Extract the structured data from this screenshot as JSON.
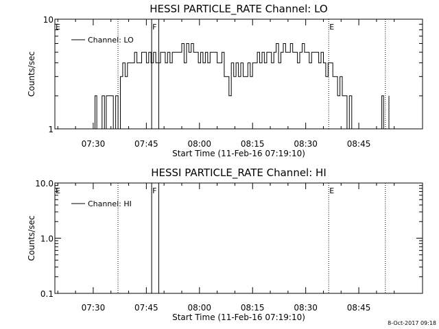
{
  "chart_data": [
    {
      "type": "line",
      "title": "HESSI PARTICLE_RATE Channel: LO",
      "xlabel": "Start Time (11-Feb-16 07:19:10)",
      "ylabel": "Counts/sec",
      "y_scale": "log",
      "ylim": [
        1,
        10
      ],
      "y_ticks": [
        1,
        10
      ],
      "y_tick_labels": [
        "1",
        "10"
      ],
      "xlim": [
        "07:19:10",
        "09:03:00"
      ],
      "x_tick_labels": [
        "07:30",
        "07:45",
        "08:00",
        "08:15",
        "08:30",
        "08:45"
      ],
      "legend": {
        "position": "top-left",
        "entries": [
          "Channel: LO"
        ]
      },
      "grid": false,
      "markers": [
        {
          "label": "E",
          "time": "07:19:10",
          "style": "dotted"
        },
        {
          "label": "",
          "time": "07:37:00",
          "style": "dotted"
        },
        {
          "label": "F",
          "time": "07:46:30",
          "style": "solid"
        },
        {
          "label": "",
          "time": "07:48:30",
          "style": "solid"
        },
        {
          "label": "E",
          "time": "08:36:30",
          "style": "dotted"
        },
        {
          "label": "",
          "time": "08:52:30",
          "style": "dotted"
        }
      ],
      "series": [
        {
          "name": "Channel: LO",
          "x": [
            "07:29:50",
            "07:30:30",
            "07:31:00",
            "07:31:30",
            "07:32:30",
            "07:33:10",
            "07:33:40",
            "07:34:20",
            "07:35:00",
            "07:35:40",
            "07:36:20",
            "07:37:00",
            "07:37:40",
            "07:38:20",
            "07:39:00",
            "07:39:40",
            "07:40:20",
            "07:41:00",
            "07:41:40",
            "07:42:20",
            "07:43:00",
            "07:43:40",
            "07:44:20",
            "07:45:00",
            "07:45:40",
            "07:46:20",
            "07:47:00",
            "07:47:40",
            "07:48:20",
            "07:49:00",
            "07:49:40",
            "07:50:20",
            "07:51:00",
            "07:51:40",
            "07:52:20",
            "07:53:00",
            "07:53:40",
            "07:54:20",
            "07:55:00",
            "07:55:40",
            "07:56:20",
            "07:57:00",
            "07:57:40",
            "07:58:20",
            "07:59:00",
            "07:59:40",
            "08:00:20",
            "08:01:00",
            "08:01:40",
            "08:02:20",
            "08:03:00",
            "08:03:40",
            "08:04:20",
            "08:05:00",
            "08:05:40",
            "08:06:20",
            "08:07:00",
            "08:07:40",
            "08:08:20",
            "08:09:00",
            "08:09:40",
            "08:10:20",
            "08:11:00",
            "08:11:40",
            "08:12:20",
            "08:13:00",
            "08:13:40",
            "08:14:20",
            "08:15:00",
            "08:15:40",
            "08:16:20",
            "08:17:00",
            "08:17:40",
            "08:18:20",
            "08:19:00",
            "08:19:40",
            "08:20:20",
            "08:21:00",
            "08:21:40",
            "08:22:20",
            "08:23:00",
            "08:23:40",
            "08:24:20",
            "08:25:00",
            "08:25:40",
            "08:26:20",
            "08:27:00",
            "08:27:40",
            "08:28:20",
            "08:29:00",
            "08:29:40",
            "08:30:20",
            "08:31:00",
            "08:31:40",
            "08:32:20",
            "08:33:00",
            "08:33:40",
            "08:34:20",
            "08:35:00",
            "08:35:40",
            "08:36:20",
            "08:37:00",
            "08:37:40",
            "08:38:20",
            "08:39:00",
            "08:39:40",
            "08:40:20",
            "08:41:00",
            "08:41:40",
            "08:42:20",
            "08:43:00",
            "08:51:00",
            "08:51:30",
            "08:52:00",
            "08:53:00",
            "08:53:30"
          ],
          "y": [
            1,
            2,
            1,
            1,
            2,
            1,
            2,
            2,
            2,
            1,
            2,
            1,
            3,
            4,
            3,
            4,
            4,
            4,
            5,
            4,
            4,
            5,
            5,
            4,
            5,
            4,
            5,
            4,
            4,
            5,
            5,
            4,
            5,
            4,
            5,
            5,
            5,
            5,
            6,
            4,
            6,
            5,
            6,
            5,
            5,
            4,
            5,
            4,
            5,
            4,
            5,
            5,
            5,
            4,
            4,
            5,
            3,
            3,
            2,
            4,
            3,
            4,
            3,
            4,
            3,
            3,
            4,
            3,
            4,
            4,
            5,
            4,
            5,
            4,
            5,
            5,
            4,
            5,
            6,
            4,
            5,
            6,
            5,
            5,
            6,
            5,
            5,
            4,
            5,
            6,
            5,
            5,
            4,
            5,
            5,
            5,
            4,
            5,
            4,
            3,
            4,
            4,
            3,
            3,
            2,
            3,
            2,
            2,
            1,
            2,
            1,
            1,
            2,
            1,
            1,
            2
          ]
        }
      ]
    },
    {
      "type": "line",
      "title": "HESSI PARTICLE_RATE Channel: HI",
      "xlabel": "Start Time (11-Feb-16 07:19:10)",
      "ylabel": "Counts/sec",
      "y_scale": "log",
      "ylim": [
        0.1,
        10.0
      ],
      "y_ticks": [
        0.1,
        1.0,
        10.0
      ],
      "y_tick_labels": [
        "0.1",
        "1.0",
        "10.0"
      ],
      "xlim": [
        "07:19:10",
        "09:03:00"
      ],
      "x_tick_labels": [
        "07:30",
        "07:45",
        "08:00",
        "08:15",
        "08:30",
        "08:45"
      ],
      "legend": {
        "position": "top-left",
        "entries": [
          "Channel: HI"
        ]
      },
      "grid": false,
      "markers": [
        {
          "label": "E",
          "time": "07:19:10",
          "style": "dotted"
        },
        {
          "label": "",
          "time": "07:37:00",
          "style": "dotted"
        },
        {
          "label": "F",
          "time": "07:46:30",
          "style": "solid"
        },
        {
          "label": "",
          "time": "07:48:30",
          "style": "solid"
        },
        {
          "label": "E",
          "time": "08:36:30",
          "style": "dotted"
        },
        {
          "label": "",
          "time": "08:52:30",
          "style": "dotted"
        }
      ],
      "series": [
        {
          "name": "Channel: HI",
          "x": [],
          "y": []
        }
      ]
    }
  ],
  "footer": "8-Oct-2017 09:18"
}
